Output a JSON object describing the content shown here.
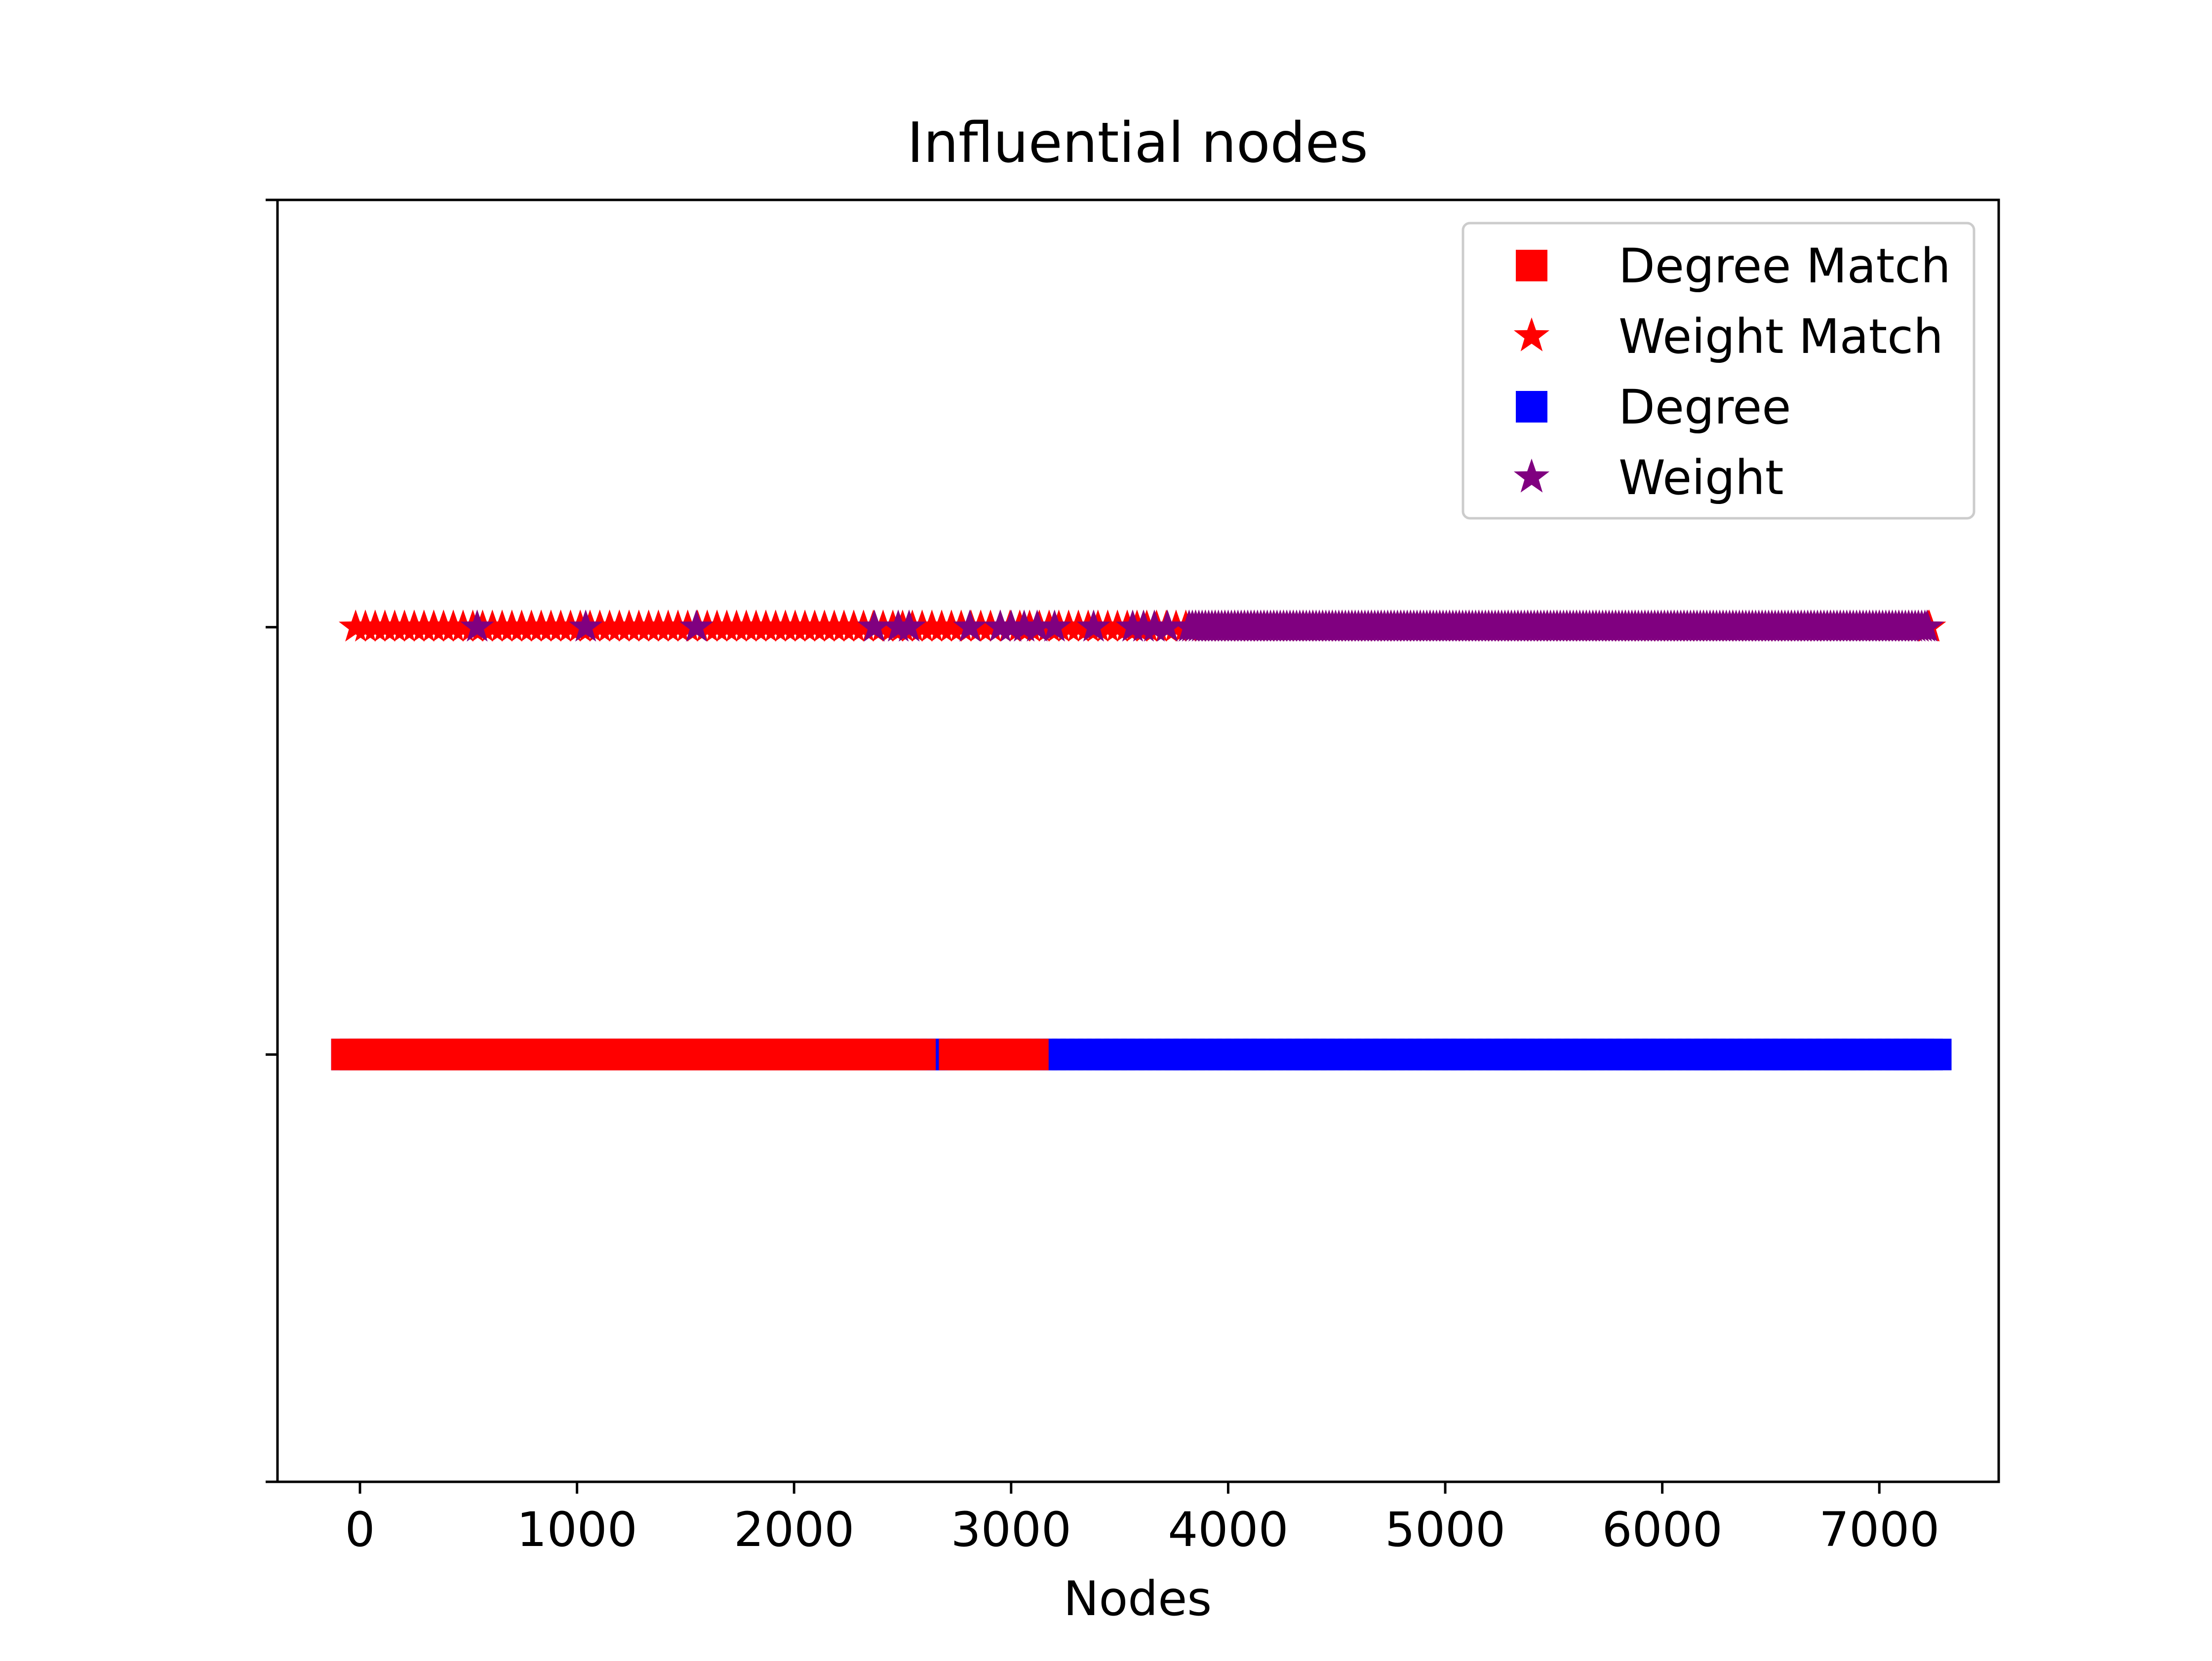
{
  "chart_data": {
    "type": "scatter",
    "title": "Influential nodes",
    "xlabel": "Nodes",
    "ylabel": "",
    "xlim": [
      -380,
      7550
    ],
    "ylim": [
      0,
      3
    ],
    "xticks": [
      0,
      1000,
      2000,
      3000,
      4000,
      5000,
      6000,
      7000
    ],
    "xtick_labels": [
      "0",
      "1000",
      "2000",
      "3000",
      "4000",
      "5000",
      "6000",
      "7000"
    ],
    "yticks": [
      0,
      1,
      2,
      3
    ],
    "ytick_labels": [
      "",
      "",
      "",
      ""
    ],
    "grid": false,
    "legend_position": "top-right",
    "legend": [
      {
        "label": "Degree Match",
        "marker": "square",
        "color": "#ff0000"
      },
      {
        "label": "Weight Match",
        "marker": "star",
        "color": "#ff0000"
      },
      {
        "label": "Degree",
        "marker": "square",
        "color": "#0000ff"
      },
      {
        "label": "Weight",
        "marker": "star",
        "color": "#800080"
      }
    ],
    "series": [
      {
        "name": "Degree",
        "marker": "square",
        "color": "#0000ff",
        "y": 1,
        "x_range": [
          -60,
          7260
        ],
        "step": 40
      },
      {
        "name": "Degree Match",
        "marker": "square",
        "color": "#ff0000",
        "y": 1,
        "segments": [
          [
            -60,
            2580
          ],
          [
            2740,
            3100
          ]
        ],
        "step": 40
      },
      {
        "name": "Weight Match",
        "marker": "star",
        "color": "#ff0000",
        "y": 2,
        "x_range": [
          -20,
          7230
        ],
        "step": 45
      },
      {
        "name": "Weight",
        "marker": "star",
        "color": "#800080",
        "y": 2,
        "points": [
          540,
          1040,
          1550,
          2370,
          2480,
          2530,
          2810,
          2950,
          3000,
          3060,
          3120,
          3200,
          3380,
          3560,
          3610,
          3660,
          3720
        ],
        "dense_range": [
          3820,
          7220
        ],
        "step": 15
      }
    ]
  }
}
